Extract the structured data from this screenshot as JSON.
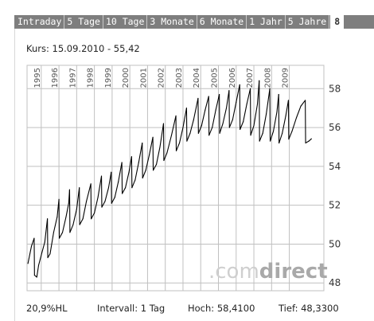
{
  "tabs": [
    {
      "label": "Intraday"
    },
    {
      "label": "5 Tage"
    },
    {
      "label": "10 Tage"
    },
    {
      "label": "3 Monate"
    },
    {
      "label": "6 Monate"
    },
    {
      "label": "1 Jahr"
    },
    {
      "label": "5 Jahre"
    }
  ],
  "tabs_more": "8",
  "quote": "Kurs: 15.09.2010 - 55,42",
  "footer": {
    "hl": "20,9%HL",
    "intervall": "Intervall: 1 Tag",
    "hoch": "Hoch: 58,4100",
    "tief": "Tief: 48,3300"
  },
  "watermark": {
    "light": ".com",
    "dark": "direct"
  },
  "colors": {
    "tab_bg": "#7e7e7e",
    "grid": "#c0c0c0",
    "line": "#000000"
  },
  "chart_data": {
    "type": "line",
    "x_tick_labels": [
      "1995",
      "1996",
      "1997",
      "1998",
      "1999",
      "2000",
      "2001",
      "2002",
      "2003",
      "2004",
      "2005",
      "2006",
      "2007",
      "2008",
      "2009"
    ],
    "y_ticks": [
      48,
      50,
      52,
      54,
      56,
      58
    ],
    "ylim": [
      47.6,
      59.2
    ],
    "xlim": [
      1994.2,
      2010.95
    ],
    "grid": true,
    "y_axis_position": "right",
    "series": [
      {
        "points": [
          [
            1994.25,
            49.0
          ],
          [
            1994.45,
            49.9
          ],
          [
            1994.6,
            50.3
          ],
          [
            1994.62,
            48.4
          ],
          [
            1994.75,
            48.3
          ],
          [
            1994.85,
            48.9
          ],
          [
            1995.05,
            49.6
          ],
          [
            1995.2,
            50.1
          ],
          [
            1995.35,
            51.3
          ],
          [
            1995.37,
            49.3
          ],
          [
            1995.5,
            49.5
          ],
          [
            1995.7,
            50.6
          ],
          [
            1995.9,
            51.4
          ],
          [
            1996.0,
            52.3
          ],
          [
            1996.02,
            50.3
          ],
          [
            1996.2,
            50.6
          ],
          [
            1996.4,
            51.4
          ],
          [
            1996.55,
            52.1
          ],
          [
            1996.6,
            52.8
          ],
          [
            1996.62,
            50.6
          ],
          [
            1996.8,
            51.0
          ],
          [
            1997.0,
            51.8
          ],
          [
            1997.15,
            52.9
          ],
          [
            1997.17,
            51.0
          ],
          [
            1997.35,
            51.3
          ],
          [
            1997.55,
            52.2
          ],
          [
            1997.8,
            53.1
          ],
          [
            1997.82,
            51.3
          ],
          [
            1998.0,
            51.6
          ],
          [
            1998.2,
            52.4
          ],
          [
            1998.4,
            53.5
          ],
          [
            1998.42,
            51.9
          ],
          [
            1998.6,
            52.2
          ],
          [
            1998.8,
            52.9
          ],
          [
            1998.95,
            53.7
          ],
          [
            1998.97,
            52.1
          ],
          [
            1999.15,
            52.4
          ],
          [
            1999.35,
            53.2
          ],
          [
            1999.55,
            54.2
          ],
          [
            1999.57,
            52.6
          ],
          [
            1999.75,
            52.9
          ],
          [
            1999.95,
            53.7
          ],
          [
            2000.1,
            54.5
          ],
          [
            2000.12,
            52.9
          ],
          [
            2000.3,
            53.3
          ],
          [
            2000.5,
            54.2
          ],
          [
            2000.7,
            55.2
          ],
          [
            2000.72,
            53.4
          ],
          [
            2000.9,
            53.8
          ],
          [
            2001.1,
            54.6
          ],
          [
            2001.3,
            55.5
          ],
          [
            2001.32,
            53.8
          ],
          [
            2001.5,
            54.1
          ],
          [
            2001.7,
            55.0
          ],
          [
            2001.9,
            56.2
          ],
          [
            2001.92,
            54.3
          ],
          [
            2002.1,
            54.7
          ],
          [
            2002.35,
            55.6
          ],
          [
            2002.6,
            56.6
          ],
          [
            2002.62,
            54.8
          ],
          [
            2002.8,
            55.2
          ],
          [
            2003.0,
            56.0
          ],
          [
            2003.2,
            57.0
          ],
          [
            2003.22,
            55.3
          ],
          [
            2003.4,
            55.7
          ],
          [
            2003.6,
            56.4
          ],
          [
            2003.85,
            57.5
          ],
          [
            2003.87,
            55.7
          ],
          [
            2004.05,
            56.1
          ],
          [
            2004.25,
            56.9
          ],
          [
            2004.45,
            57.6
          ],
          [
            2004.47,
            55.6
          ],
          [
            2004.65,
            56.0
          ],
          [
            2004.85,
            56.9
          ],
          [
            2005.05,
            57.7
          ],
          [
            2005.07,
            55.7
          ],
          [
            2005.25,
            56.2
          ],
          [
            2005.45,
            57.0
          ],
          [
            2005.6,
            57.9
          ],
          [
            2005.62,
            56.0
          ],
          [
            2005.8,
            56.4
          ],
          [
            2006.0,
            57.3
          ],
          [
            2006.2,
            58.2
          ],
          [
            2006.22,
            55.9
          ],
          [
            2006.4,
            56.3
          ],
          [
            2006.6,
            57.2
          ],
          [
            2006.8,
            58.0
          ],
          [
            2006.82,
            55.6
          ],
          [
            2007.0,
            56.1
          ],
          [
            2007.2,
            57.2
          ],
          [
            2007.3,
            58.41
          ],
          [
            2007.32,
            55.3
          ],
          [
            2007.5,
            55.7
          ],
          [
            2007.7,
            56.7
          ],
          [
            2007.9,
            58.0
          ],
          [
            2007.92,
            55.3
          ],
          [
            2008.1,
            55.8
          ],
          [
            2008.3,
            56.8
          ],
          [
            2008.4,
            57.7
          ],
          [
            2008.42,
            55.2
          ],
          [
            2008.6,
            55.7
          ],
          [
            2008.8,
            56.6
          ],
          [
            2008.95,
            57.4
          ],
          [
            2008.97,
            55.4
          ],
          [
            2009.15,
            55.8
          ],
          [
            2009.4,
            56.5
          ],
          [
            2009.65,
            57.1
          ],
          [
            2009.9,
            57.4
          ],
          [
            2009.92,
            55.2
          ],
          [
            2010.1,
            55.3
          ],
          [
            2010.25,
            55.42
          ]
        ]
      }
    ]
  }
}
